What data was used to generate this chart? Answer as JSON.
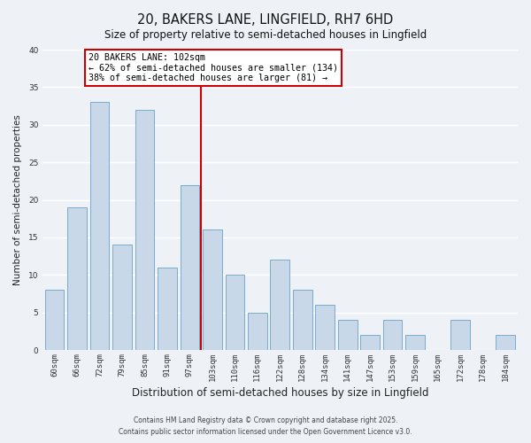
{
  "title": "20, BAKERS LANE, LINGFIELD, RH7 6HD",
  "subtitle": "Size of property relative to semi-detached houses in Lingfield",
  "xlabel": "Distribution of semi-detached houses by size in Lingfield",
  "ylabel": "Number of semi-detached properties",
  "categories": [
    "60sqm",
    "66sqm",
    "72sqm",
    "79sqm",
    "85sqm",
    "91sqm",
    "97sqm",
    "103sqm",
    "110sqm",
    "116sqm",
    "122sqm",
    "128sqm",
    "134sqm",
    "141sqm",
    "147sqm",
    "153sqm",
    "159sqm",
    "165sqm",
    "172sqm",
    "178sqm",
    "184sqm"
  ],
  "values": [
    8,
    19,
    33,
    14,
    32,
    11,
    22,
    16,
    10,
    5,
    12,
    8,
    6,
    4,
    2,
    4,
    2,
    0,
    4,
    0,
    2
  ],
  "bar_color": "#c8d8e8",
  "bar_edge_color": "#7aabcc",
  "reference_line_index": 7,
  "reference_line_color": "#cc0000",
  "annotation_title": "20 BAKERS LANE: 102sqm",
  "annotation_line1": "← 62% of semi-detached houses are smaller (134)",
  "annotation_line2": "38% of semi-detached houses are larger (81) →",
  "annotation_box_facecolor": "#ffffff",
  "annotation_box_edgecolor": "#cc0000",
  "ylim": [
    0,
    40
  ],
  "yticks": [
    0,
    5,
    10,
    15,
    20,
    25,
    30,
    35,
    40
  ],
  "background_color": "#eef2f7",
  "grid_color": "#ffffff",
  "footer_line1": "Contains HM Land Registry data © Crown copyright and database right 2025.",
  "footer_line2": "Contains public sector information licensed under the Open Government Licence v3.0.",
  "title_fontsize": 10.5,
  "subtitle_fontsize": 8.5,
  "xlabel_fontsize": 8.5,
  "ylabel_fontsize": 7.5,
  "tick_fontsize": 6.5,
  "annotation_fontsize": 7.2,
  "footer_fontsize": 5.5
}
